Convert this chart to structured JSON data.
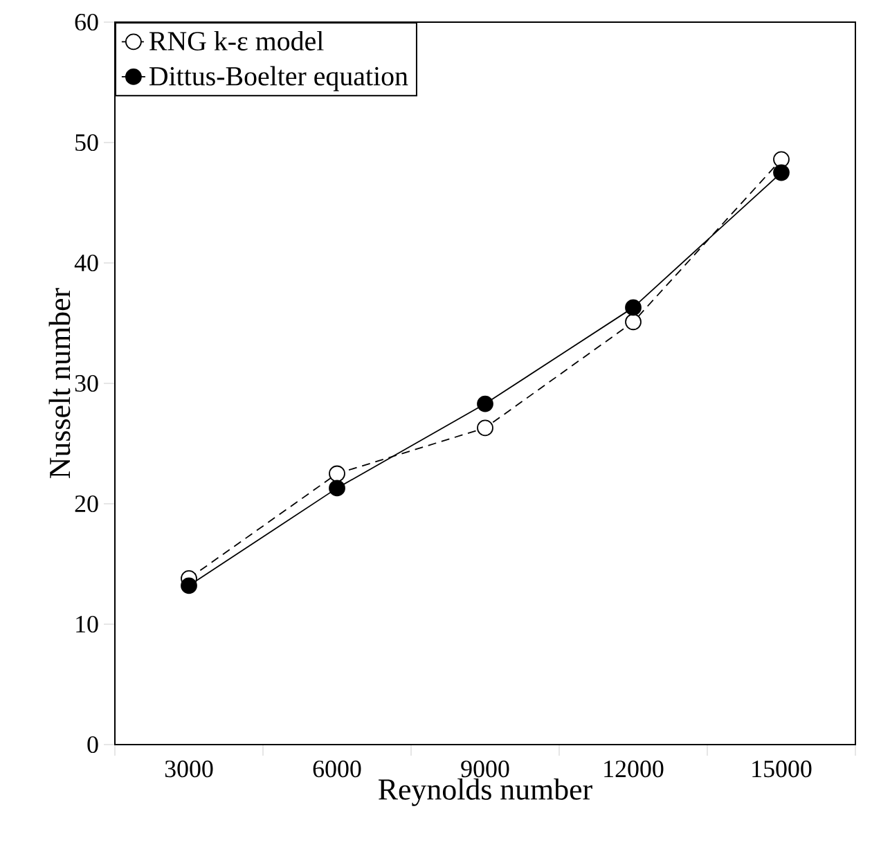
{
  "chart_data": {
    "type": "line",
    "xlabel": "Reynolds number",
    "ylabel": "Nusselt number",
    "categories": [
      "3000",
      "6000",
      "9000",
      "12000",
      "15000"
    ],
    "series": [
      {
        "name": "RNG k-ε model",
        "color": "#000000",
        "line_style": "dashed",
        "marker": "circle",
        "values": [
          13.8,
          22.5,
          26.3,
          35.1,
          48.6
        ]
      },
      {
        "name": "Dittus-Boelter equation",
        "color": "#000000",
        "line_style": "solid",
        "marker": "circle",
        "values": [
          13.2,
          21.3,
          28.3,
          36.3,
          47.5
        ]
      }
    ],
    "ylim": [
      0,
      60
    ],
    "yticks": [
      0,
      10,
      20,
      30,
      40,
      50,
      60
    ],
    "grid": false,
    "legend": "top left"
  }
}
